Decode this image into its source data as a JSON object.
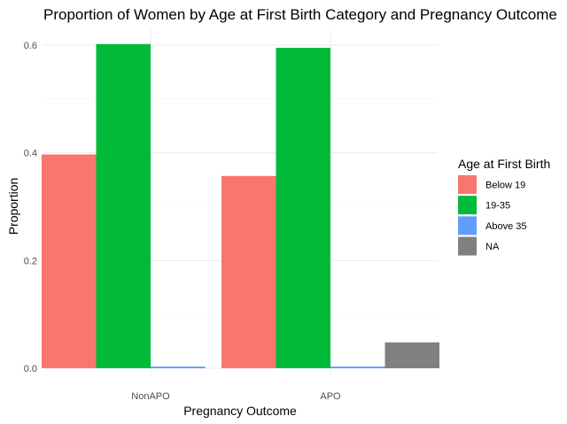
{
  "chart_data": {
    "type": "bar",
    "title": "Proportion of Women by Age at First Birth Category and Pregnancy Outcome",
    "xlabel": "Pregnancy Outcome",
    "ylabel": "Proportion",
    "categories": [
      "NonAPO",
      "APO"
    ],
    "ylim": [
      0,
      0.63
    ],
    "yticks": [
      0.0,
      0.2,
      0.4,
      0.6
    ],
    "ytick_labels": [
      "0.0",
      "0.2",
      "0.4",
      "0.6"
    ],
    "grid": true,
    "legend": {
      "title": "Age at First Birth",
      "position": "right"
    },
    "series": [
      {
        "name": "Below 19",
        "color": "#F8766D",
        "values": [
          0.397,
          0.357
        ]
      },
      {
        "name": "19-35",
        "color": "#00BA38",
        "values": [
          0.602,
          0.595
        ]
      },
      {
        "name": "Above 35",
        "color": "#619CFF",
        "values": [
          0.003,
          0.003
        ]
      },
      {
        "name": "NA",
        "color": "#808080",
        "values": [
          null,
          0.048
        ]
      }
    ]
  }
}
